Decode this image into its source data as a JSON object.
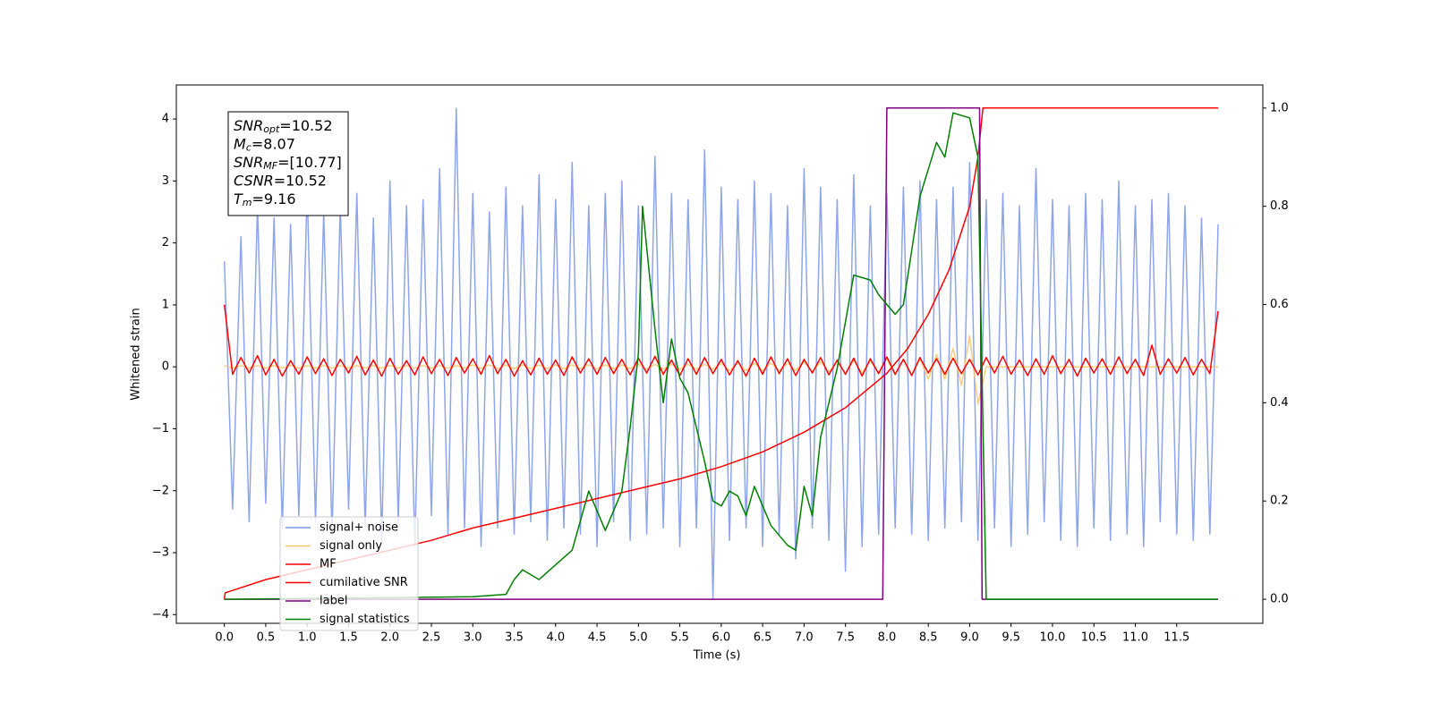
{
  "chart_data": {
    "type": "line",
    "xlabel": "Time (s)",
    "ylabel": "Whitened strain",
    "xlim": [
      -0.58,
      12.54
    ],
    "ylim": [
      -4.14,
      4.55
    ],
    "y2lim": [
      -0.049,
      1.047
    ],
    "xticks": [
      {
        "value": 0,
        "label": "0.0"
      },
      0.5,
      {
        "value": 1,
        "label": "1.0"
      },
      1.5,
      {
        "value": 2,
        "label": "2.0"
      },
      2.5,
      {
        "value": 3,
        "label": "3.0"
      },
      3.5,
      {
        "value": 4,
        "label": "4.0"
      },
      4.5,
      {
        "value": 5,
        "label": "5.0"
      },
      5.5,
      {
        "value": 6,
        "label": "6.0"
      },
      6.5,
      {
        "value": 7,
        "label": "7.0"
      },
      7.5,
      {
        "value": 8,
        "label": "8.0"
      },
      8.5,
      {
        "value": 9,
        "label": "9.0"
      },
      9.5,
      {
        "value": 10,
        "label": "10.0"
      },
      10.5,
      {
        "value": 11,
        "label": "11.0"
      },
      11.5
    ],
    "yticks": [
      {
        "value": -4,
        "label": "−4"
      },
      {
        "value": -3,
        "label": "−3"
      },
      {
        "value": -2,
        "label": "−2"
      },
      {
        "value": -1,
        "label": "−1"
      },
      0,
      1,
      2,
      3,
      4
    ],
    "y2ticks": [
      {
        "value": 0,
        "label": "0.0"
      },
      0.2,
      0.4,
      0.6,
      0.8,
      {
        "value": 1,
        "label": "1.0"
      }
    ],
    "legend": "lower left",
    "annotations": [
      {
        "name": "SNR",
        "sub": "opt",
        "value": "=10.52"
      },
      {
        "name": "M",
        "sub": "c",
        "value": "=8.07"
      },
      {
        "name": "SNR",
        "sub": "MF",
        "value": "=[10.77]"
      },
      {
        "name": "CSNR",
        "value": "=10.52"
      },
      {
        "name": "T",
        "sub": "m",
        "value": "=9.16"
      }
    ],
    "x": [
      0,
      0.1,
      0.2,
      0.3,
      0.4,
      0.5,
      0.6,
      0.7,
      0.8,
      0.9,
      1,
      1.1,
      1.2,
      1.3,
      1.4,
      1.5,
      1.6,
      1.7,
      1.8,
      1.9,
      2,
      2.1,
      2.2,
      2.3,
      2.4,
      2.5,
      2.6,
      2.7,
      2.8,
      2.9,
      3,
      3.1,
      3.2,
      3.3,
      3.4,
      3.5,
      3.6,
      3.7,
      3.8,
      3.9,
      4,
      4.1,
      4.2,
      4.3,
      4.4,
      4.5,
      4.6,
      4.7,
      4.8,
      4.9,
      5,
      5.1,
      5.2,
      5.3,
      5.4,
      5.5,
      5.6,
      5.7,
      5.8,
      5.9,
      6,
      6.1,
      6.2,
      6.3,
      6.4,
      6.5,
      6.6,
      6.7,
      6.8,
      6.9,
      7,
      7.1,
      7.2,
      7.3,
      7.4,
      7.5,
      7.6,
      7.7,
      7.8,
      7.9,
      8,
      8.1,
      8.2,
      8.3,
      8.4,
      8.5,
      8.6,
      8.7,
      8.8,
      8.9,
      9,
      9.1,
      9.2,
      9.3,
      9.4,
      9.5,
      9.6,
      9.7,
      9.8,
      9.9,
      10,
      10.1,
      10.2,
      10.3,
      10.4,
      10.5,
      10.6,
      10.7,
      10.8,
      10.9,
      11,
      11.1,
      11.2,
      11.3,
      11.4,
      11.5,
      11.6,
      11.7,
      11.8,
      11.9,
      12
    ],
    "series": [
      {
        "name": "signal+ noise",
        "color": "#7a95e8",
        "values": [
          1.7,
          -2.3,
          2.1,
          -2.5,
          2.6,
          -2.2,
          2.4,
          -2.6,
          2.3,
          -2.4,
          2.9,
          -2.5,
          2.5,
          -2.7,
          2.6,
          -2.3,
          2.8,
          -2.6,
          2.4,
          -2.8,
          3.0,
          -2.5,
          2.6,
          -2.9,
          2.7,
          -2.4,
          3.2,
          -2.7,
          4.17,
          -2.6,
          2.8,
          -2.9,
          2.5,
          -2.6,
          2.9,
          -2.7,
          2.6,
          -2.5,
          3.1,
          -2.8,
          2.7,
          -2.6,
          3.3,
          -2.7,
          2.6,
          -2.9,
          2.8,
          -2.5,
          3.0,
          -2.8,
          2.6,
          -2.7,
          3.4,
          -2.6,
          2.8,
          -2.9,
          2.7,
          -2.6,
          3.5,
          -3.75,
          2.9,
          -2.8,
          2.7,
          -2.6,
          3.0,
          -2.9,
          2.8,
          -2.7,
          2.6,
          -3.1,
          3.2,
          -2.6,
          2.9,
          -2.8,
          2.7,
          -3.3,
          3.1,
          -2.9,
          2.6,
          -2.7,
          2.8,
          -2.6,
          2.9,
          -2.7,
          3.0,
          -2.8,
          2.7,
          -2.6,
          2.9,
          -2.5,
          3.3,
          -2.8,
          2.7,
          -2.6,
          2.8,
          -2.9,
          2.6,
          -2.7,
          3.2,
          -2.5,
          2.7,
          -2.8,
          2.6,
          -2.9,
          2.8,
          -2.6,
          2.7,
          -2.8,
          3.0,
          -2.7,
          2.6,
          -2.9,
          2.7,
          -2.5,
          2.8,
          -2.7,
          2.6,
          -2.8,
          2.4,
          -2.7,
          2.3
        ]
      },
      {
        "name": "signal only",
        "color": "#f5c76b",
        "values": [
          0.02,
          -0.02,
          0.02,
          -0.02,
          0.02,
          -0.02,
          0.02,
          -0.02,
          0.02,
          -0.02,
          0.02,
          -0.02,
          0.02,
          -0.02,
          0.02,
          -0.02,
          0.02,
          -0.02,
          0.02,
          -0.02,
          0.02,
          -0.02,
          0.02,
          -0.02,
          0.02,
          -0.02,
          0.02,
          -0.02,
          0.02,
          -0.02,
          0.03,
          -0.03,
          0.03,
          -0.03,
          0.03,
          -0.03,
          0.03,
          -0.03,
          0.03,
          -0.03,
          0.03,
          -0.03,
          0.03,
          -0.03,
          0.03,
          -0.03,
          0.03,
          -0.03,
          0.03,
          -0.03,
          0.04,
          -0.04,
          0.04,
          -0.04,
          0.04,
          -0.04,
          0.04,
          -0.04,
          0.04,
          -0.04,
          0.06,
          -0.06,
          0.06,
          -0.06,
          0.06,
          -0.06,
          0.06,
          -0.06,
          0.06,
          -0.06,
          0.08,
          -0.08,
          0.08,
          -0.08,
          0.08,
          -0.1,
          0.1,
          -0.1,
          0.1,
          -0.1,
          0.13,
          -0.13,
          0.13,
          -0.13,
          0.13,
          -0.2,
          0.2,
          -0.2,
          0.3,
          -0.3,
          0.5,
          -0.6,
          0,
          0,
          0,
          0,
          0,
          0,
          0,
          0,
          0,
          0,
          0,
          0,
          0,
          0,
          0,
          0,
          0,
          0,
          0,
          0,
          0,
          0,
          0,
          0,
          0,
          0,
          0,
          0,
          0
        ]
      },
      {
        "name": "MF",
        "color": "#ff0000",
        "values": [
          1.0,
          -0.12,
          0.15,
          -0.1,
          0.18,
          -0.13,
          0.12,
          -0.15,
          0.1,
          -0.12,
          0.16,
          -0.11,
          0.13,
          -0.14,
          0.12,
          -0.1,
          0.17,
          -0.13,
          0.11,
          -0.15,
          0.14,
          -0.12,
          0.1,
          -0.13,
          0.16,
          -0.11,
          0.12,
          -0.14,
          0.15,
          -0.1,
          0.13,
          -0.12,
          0.18,
          -0.11,
          0.12,
          -0.15,
          0.1,
          -0.13,
          0.14,
          -0.12,
          0.11,
          -0.14,
          0.16,
          -0.1,
          0.13,
          -0.12,
          0.15,
          -0.11,
          0.12,
          -0.13,
          0.14,
          -0.1,
          0.17,
          -0.12,
          0.11,
          -0.14,
          0.13,
          -0.12,
          0.15,
          -0.11,
          0.12,
          -0.13,
          0.1,
          -0.15,
          0.14,
          -0.12,
          0.16,
          -0.11,
          0.13,
          -0.14,
          0.12,
          -0.1,
          0.15,
          -0.13,
          0.11,
          -0.12,
          0.14,
          -0.15,
          0.13,
          -0.11,
          0.16,
          -0.12,
          0.12,
          -0.14,
          0.15,
          -0.1,
          0.13,
          -0.12,
          0.14,
          -0.11,
          0.12,
          -0.13,
          0.15,
          -0.1,
          0.17,
          -0.12,
          0.11,
          -0.14,
          0.13,
          -0.12,
          0.18,
          -0.11,
          0.12,
          -0.15,
          0.14,
          -0.1,
          0.13,
          -0.12,
          0.16,
          -0.11,
          0.12,
          -0.14,
          0.35,
          -0.12,
          0.13,
          -0.1,
          0.15,
          -0.13,
          0.12,
          -0.11,
          0.9
        ]
      },
      {
        "name": "cumilative SNR",
        "color": "#ff0000",
        "axis": "y2",
        "x": [
          0,
          0.01,
          0.5,
          1,
          1.5,
          2,
          2.5,
          3,
          3.5,
          4,
          4.5,
          5,
          5.5,
          6,
          6.5,
          7,
          7.5,
          8,
          8.25,
          8.5,
          8.75,
          9,
          9.1,
          9.16,
          12
        ],
        "values": [
          0,
          0.013,
          0.04,
          0.06,
          0.08,
          0.1,
          0.12,
          0.145,
          0.165,
          0.185,
          0.205,
          0.225,
          0.245,
          0.27,
          0.3,
          0.34,
          0.39,
          0.46,
          0.51,
          0.58,
          0.67,
          0.8,
          0.9,
          1,
          1
        ]
      },
      {
        "name": "label",
        "color": "#800080",
        "axis": "y2",
        "x": [
          0,
          7.95,
          8.0,
          9.12,
          9.15,
          12
        ],
        "values": [
          0,
          0,
          1,
          1,
          0,
          0
        ]
      },
      {
        "name": "signal statistics",
        "color": "#008000",
        "axis": "y2",
        "x": [
          0,
          2,
          3,
          3.4,
          3.5,
          3.6,
          3.8,
          4,
          4.2,
          4.4,
          4.6,
          4.8,
          4.9,
          5,
          5.05,
          5.2,
          5.3,
          5.4,
          5.5,
          5.6,
          5.8,
          5.9,
          6,
          6.1,
          6.2,
          6.3,
          6.4,
          6.6,
          6.8,
          6.9,
          7,
          7.1,
          7.2,
          7.4,
          7.6,
          7.8,
          7.9,
          8.1,
          8.2,
          8.4,
          8.6,
          8.7,
          8.8,
          9,
          9.1,
          9.2,
          11.99
        ],
        "values": [
          0,
          0.003,
          0.005,
          0.01,
          0.04,
          0.06,
          0.04,
          0.07,
          0.1,
          0.22,
          0.14,
          0.22,
          0.35,
          0.5,
          0.8,
          0.55,
          0.4,
          0.53,
          0.45,
          0.42,
          0.28,
          0.2,
          0.19,
          0.22,
          0.21,
          0.17,
          0.23,
          0.15,
          0.11,
          0.1,
          0.23,
          0.17,
          0.33,
          0.47,
          0.66,
          0.65,
          0.62,
          0.58,
          0.6,
          0.82,
          0.93,
          0.9,
          0.99,
          0.98,
          0.9,
          0,
          0
        ]
      }
    ]
  }
}
